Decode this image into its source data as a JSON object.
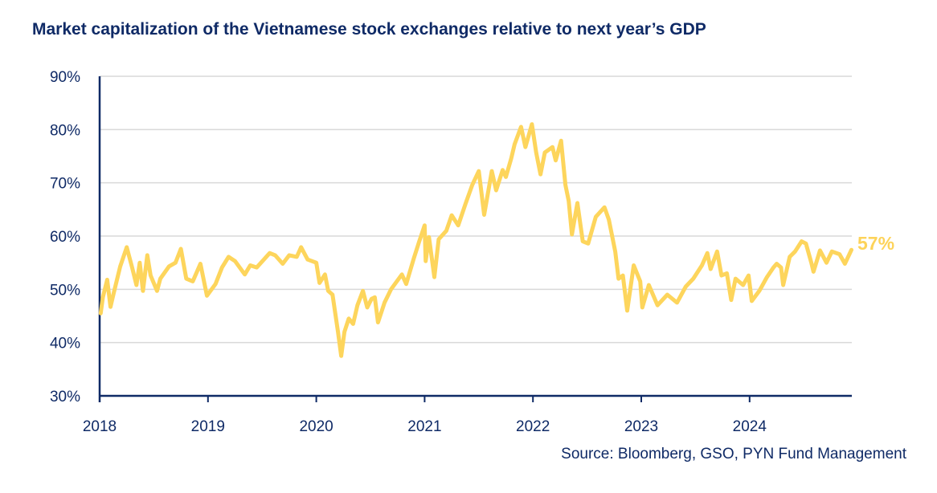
{
  "chart_data": {
    "type": "line",
    "title": "Market capitalization of the Vietnamese stock exchanges relative to next year’s GDP",
    "source": "Source: Bloomberg, GSO, PYN Fund Management",
    "xlabel": "",
    "ylabel": "",
    "xlim": [
      2018,
      2024.94
    ],
    "ylim": [
      30,
      90
    ],
    "x_ticks": [
      2018,
      2019,
      2020,
      2021,
      2022,
      2023,
      2024
    ],
    "x_tick_labels": [
      "2018",
      "2019",
      "2020",
      "2021",
      "2022",
      "2023",
      "2024"
    ],
    "y_ticks": [
      30,
      40,
      50,
      60,
      70,
      80,
      90
    ],
    "y_tick_labels": [
      "30%",
      "40%",
      "50%",
      "60%",
      "70%",
      "80%",
      "90%"
    ],
    "grid": "horizontal",
    "line_color": "#fdd55c",
    "axis_color": "#0f2a66",
    "end_label": "57%",
    "series": [
      {
        "x": [
          2018.01,
          2018.03,
          2018.07,
          2018.1,
          2018.13,
          2018.19,
          2018.25,
          2018.3,
          2018.34,
          2018.37,
          2018.4,
          2018.44,
          2018.47,
          2018.53,
          2018.56,
          2018.64,
          2018.7,
          2018.75,
          2018.8,
          2018.86,
          2018.93,
          2018.99,
          2019.07,
          2019.13,
          2019.19,
          2019.25,
          2019.34,
          2019.39,
          2019.45,
          2019.57,
          2019.62,
          2019.69,
          2019.75,
          2019.82,
          2019.86,
          2019.92,
          2020.0,
          2020.03,
          2020.08,
          2020.11,
          2020.15,
          2020.2,
          2020.23,
          2020.26,
          2020.3,
          2020.34,
          2020.38,
          2020.43,
          2020.47,
          2020.51,
          2020.54,
          2020.57,
          2020.63,
          2020.69,
          2020.79,
          2020.83,
          2020.9,
          2020.95,
          2021.0,
          2021.01,
          2021.04,
          2021.09,
          2021.13,
          2021.2,
          2021.25,
          2021.31,
          2021.38,
          2021.44,
          2021.5,
          2021.55,
          2021.62,
          2021.66,
          2021.72,
          2021.75,
          2021.8,
          2021.83,
          2021.89,
          2021.93,
          2021.99,
          2022.03,
          2022.07,
          2022.11,
          2022.18,
          2022.21,
          2022.26,
          2022.3,
          2022.33,
          2022.36,
          2022.41,
          2022.46,
          2022.51,
          2022.58,
          2022.66,
          2022.7,
          2022.76,
          2022.79,
          2022.83,
          2022.87,
          2022.93,
          2022.99,
          2023.01,
          2023.07,
          2023.15,
          2023.24,
          2023.33,
          2023.41,
          2023.48,
          2023.56,
          2023.61,
          2023.64,
          2023.7,
          2023.74,
          2023.79,
          2023.83,
          2023.87,
          2023.94,
          2023.99,
          2024.02,
          2024.09,
          2024.16,
          2024.22,
          2024.25,
          2024.29,
          2024.31,
          2024.37,
          2024.42,
          2024.48,
          2024.52,
          2024.57,
          2024.59,
          2024.65,
          2024.71,
          2024.76,
          2024.83,
          2024.88,
          2024.94
        ],
        "values": [
          45.5,
          48.5,
          51.8,
          46.7,
          49.3,
          54.3,
          57.9,
          54.1,
          50.8,
          55.0,
          49.7,
          56.4,
          52.6,
          49.7,
          52.0,
          54.3,
          55.0,
          57.6,
          52.0,
          51.5,
          54.8,
          48.8,
          51.0,
          54.1,
          56.1,
          55.3,
          52.8,
          54.5,
          54.1,
          56.8,
          56.4,
          54.8,
          56.4,
          56.1,
          57.9,
          55.6,
          55.0,
          51.2,
          52.8,
          49.7,
          49.0,
          42.0,
          37.5,
          42.0,
          44.5,
          43.5,
          47.0,
          49.7,
          46.6,
          48.2,
          48.5,
          43.8,
          47.5,
          50.0,
          52.8,
          51.0,
          55.8,
          59.0,
          62.0,
          55.3,
          59.8,
          52.3,
          59.4,
          61.0,
          63.9,
          62.0,
          66.2,
          69.6,
          72.2,
          64.0,
          72.2,
          68.6,
          72.4,
          71.1,
          74.6,
          77.2,
          80.5,
          76.7,
          81.0,
          75.7,
          71.6,
          75.7,
          76.7,
          74.2,
          77.9,
          69.6,
          66.6,
          60.3,
          66.2,
          59.0,
          58.6,
          63.6,
          65.4,
          63.1,
          57.1,
          52.0,
          52.6,
          46.0,
          54.5,
          51.5,
          46.6,
          50.8,
          47.0,
          49.0,
          47.5,
          50.5,
          52.0,
          54.5,
          56.8,
          53.8,
          57.1,
          52.6,
          53.0,
          48.0,
          52.0,
          50.8,
          52.6,
          47.8,
          49.7,
          52.3,
          54.1,
          54.8,
          54.1,
          50.8,
          56.1,
          57.1,
          59.0,
          58.6,
          55.0,
          53.3,
          57.3,
          55.0,
          57.1,
          56.6,
          54.8,
          57.4
        ]
      }
    ]
  }
}
